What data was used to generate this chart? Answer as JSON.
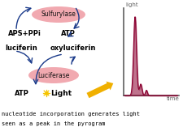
{
  "bg_color": "#ffffff",
  "title_bottom_line1": "nucleotide incorporation generates light",
  "title_bottom_line2": "seen as a peak in the pyrogram",
  "sulfurylase_label": "Sulfurylase",
  "luciferase_label": "Luciferase",
  "aps_ppi_label": "APS+PPi",
  "atp_label1": "ATP",
  "luciferin_label": "luciferin",
  "oxyluciferin_label": "oxyluciferin",
  "atp_label2": "ATP",
  "light_label": "Light",
  "light_axis_label": "light",
  "time_axis_label": "time",
  "ellipse_color": "#f0a0a8",
  "arrow_color": "#1a3a8a",
  "peak_color": "#8b0030",
  "axis_color": "#606060",
  "text_color_black": "#000000",
  "yellow_arrow_color": "#f0b000",
  "sun_color": "#f5c400",
  "figwidth": 2.25,
  "figheight": 1.73,
  "dpi": 100
}
